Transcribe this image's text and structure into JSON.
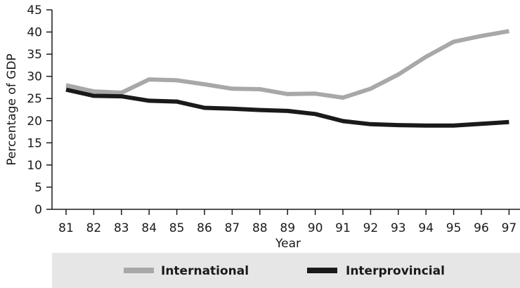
{
  "chart_data": {
    "type": "line",
    "title": "",
    "xlabel": "Year",
    "ylabel": "Percentage of GDP",
    "categories": [
      "81",
      "82",
      "83",
      "84",
      "85",
      "86",
      "87",
      "88",
      "89",
      "90",
      "91",
      "92",
      "93",
      "94",
      "95",
      "96",
      "97"
    ],
    "yticks": [
      0,
      5,
      10,
      15,
      20,
      25,
      30,
      35,
      40,
      45
    ],
    "ylim": [
      0,
      45
    ],
    "grid": false,
    "legend_position": "bottom",
    "series": [
      {
        "name": "International",
        "color": "#a8a8a8",
        "values": [
          28.0,
          26.6,
          26.3,
          29.3,
          29.1,
          28.2,
          27.2,
          27.1,
          26.0,
          26.1,
          25.2,
          27.2,
          30.4,
          34.4,
          37.8,
          39.1,
          40.2
        ]
      },
      {
        "name": "Interprovincial",
        "color": "#1a1a1a",
        "values": [
          27.0,
          25.6,
          25.5,
          24.5,
          24.3,
          22.9,
          22.7,
          22.4,
          22.2,
          21.5,
          19.9,
          19.2,
          19.0,
          18.9,
          18.9,
          19.3,
          19.7
        ]
      }
    ]
  }
}
